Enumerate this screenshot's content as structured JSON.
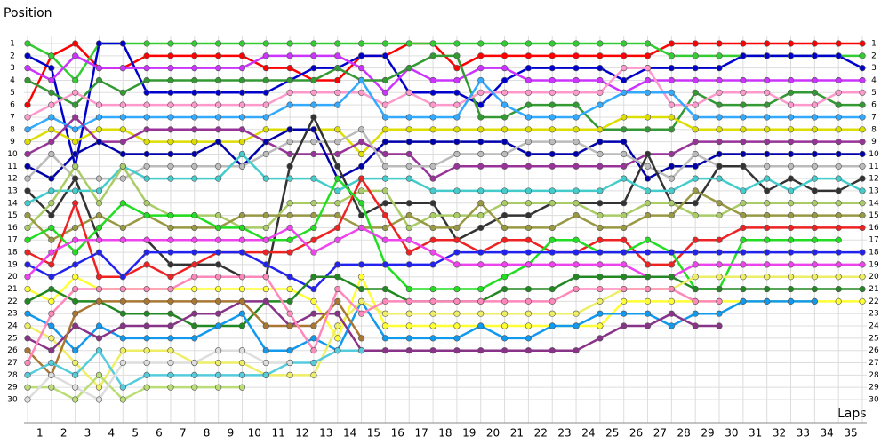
{
  "chart_data": {
    "type": "line",
    "y_label": "Position",
    "x_label": "Laps",
    "categories": [
      null,
      "1",
      "2",
      "3",
      "4",
      "5",
      "6",
      "7",
      "8",
      "9",
      "10",
      "11",
      "12",
      "13",
      "14",
      "15",
      "16",
      "17",
      "18",
      "19",
      "20",
      "21",
      "22",
      "23",
      "24",
      "25",
      "26",
      "27",
      "28",
      "29",
      "30",
      "31",
      "32",
      "33",
      "34",
      "35"
    ],
    "ylim": [
      1,
      30
    ],
    "y_inverted": true,
    "yticks": [
      1,
      2,
      3,
      4,
      5,
      6,
      7,
      8,
      9,
      10,
      11,
      12,
      13,
      14,
      15,
      16,
      17,
      18,
      19,
      20,
      21,
      22,
      23,
      24,
      25,
      26,
      27,
      28,
      29,
      30
    ],
    "grid": true,
    "series": [
      {
        "color": "#ff0000",
        "values": [
          6,
          2,
          1,
          3,
          3,
          2,
          2,
          2,
          2,
          2,
          3,
          3,
          4,
          4,
          2,
          2,
          1,
          1,
          3,
          2,
          2,
          2,
          2,
          2,
          2,
          2,
          2,
          1,
          1,
          1,
          1,
          1,
          1,
          1,
          1,
          1
        ]
      },
      {
        "color": "#33cc33",
        "values": [
          1,
          2,
          4,
          1,
          1,
          1,
          1,
          1,
          1,
          1,
          1,
          1,
          1,
          1,
          1,
          1,
          1,
          1,
          1,
          1,
          1,
          1,
          1,
          1,
          1,
          1,
          1,
          2,
          2,
          2,
          2,
          2,
          2,
          2,
          2,
          2
        ]
      },
      {
        "color": "#0000cc",
        "values": [
          2,
          3,
          11,
          1,
          1,
          5,
          5,
          5,
          5,
          5,
          5,
          4,
          3,
          3,
          2,
          2,
          5,
          5,
          5,
          6,
          4,
          3,
          3,
          3,
          3,
          4,
          3,
          3,
          3,
          3,
          2,
          2,
          2,
          2,
          2,
          3
        ]
      },
      {
        "color": "#cc33ff",
        "values": [
          3,
          4,
          2,
          3,
          3,
          3,
          3,
          3,
          3,
          3,
          2,
          2,
          2,
          2,
          3,
          5,
          3,
          4,
          4,
          3,
          3,
          4,
          4,
          4,
          4,
          5,
          4,
          4,
          4,
          4,
          4,
          4,
          4,
          4,
          4,
          4
        ]
      },
      {
        "color": "#339933",
        "values": [
          4,
          5,
          6,
          4,
          5,
          4,
          4,
          4,
          4,
          4,
          4,
          4,
          4,
          3,
          4,
          4,
          3,
          2,
          2,
          7,
          7,
          6,
          6,
          6,
          8,
          8,
          8,
          8,
          5,
          6,
          6,
          6,
          5,
          5,
          6,
          6
        ]
      },
      {
        "color": "#ff99cc",
        "values": [
          7,
          6,
          5,
          6,
          6,
          6,
          6,
          6,
          6,
          6,
          6,
          5,
          5,
          5,
          5,
          6,
          5,
          6,
          6,
          5,
          5,
          5,
          5,
          5,
          5,
          3,
          3,
          6,
          6,
          5,
          5,
          5,
          6,
          6,
          5,
          5
        ]
      },
      {
        "color": "#33aaff",
        "values": [
          8,
          7,
          8,
          7,
          7,
          7,
          7,
          7,
          7,
          7,
          7,
          6,
          6,
          6,
          4,
          7,
          7,
          7,
          7,
          4,
          6,
          7,
          7,
          7,
          6,
          5,
          5,
          5,
          7,
          7,
          7,
          7,
          7,
          7,
          7,
          7
        ]
      },
      {
        "color": "#dddd00",
        "values": [
          9,
          8,
          9,
          8,
          8,
          9,
          9,
          9,
          9,
          9,
          8,
          8,
          8,
          8,
          10,
          8,
          8,
          8,
          8,
          8,
          8,
          8,
          8,
          8,
          8,
          7,
          7,
          7,
          8,
          8,
          8,
          8,
          8,
          8,
          8,
          8
        ]
      },
      {
        "color": "#993399",
        "values": [
          10,
          9,
          7,
          9,
          9,
          8,
          8,
          8,
          8,
          8,
          9,
          10,
          10,
          10,
          9,
          10,
          10,
          12,
          11,
          11,
          11,
          11,
          11,
          11,
          11,
          11,
          10,
          10,
          9,
          9,
          9,
          9,
          9,
          9,
          9,
          9
        ]
      },
      {
        "color": "#0000aa",
        "values": [
          11,
          12,
          10,
          9,
          10,
          10,
          10,
          10,
          9,
          11,
          9,
          8,
          8,
          12,
          11,
          9,
          9,
          9,
          9,
          9,
          9,
          10,
          10,
          10,
          9,
          9,
          12,
          11,
          11,
          10,
          10,
          10,
          10,
          10,
          10,
          10
        ]
      },
      {
        "color": "#bbbbbb",
        "values": [
          12,
          10,
          12,
          12,
          12,
          11,
          11,
          11,
          11,
          11,
          10,
          9,
          9,
          9,
          8,
          11,
          11,
          11,
          10,
          10,
          10,
          9,
          9,
          9,
          10,
          10,
          11,
          12,
          10,
          11,
          11,
          11,
          11,
          11,
          11,
          11
        ]
      },
      {
        "color": "#333333",
        "values": [
          13,
          15,
          12,
          17,
          17,
          17,
          19,
          19,
          19,
          20,
          20,
          11,
          7,
          11,
          15,
          14,
          14,
          14,
          17,
          16,
          15,
          15,
          14,
          14,
          14,
          14,
          10,
          14,
          14,
          11,
          11,
          13,
          12,
          13,
          13,
          12
        ]
      },
      {
        "color": "#44cccc",
        "values": [
          14,
          13,
          13,
          13,
          11,
          12,
          12,
          12,
          12,
          10,
          12,
          12,
          12,
          13,
          12,
          12,
          12,
          13,
          13,
          13,
          13,
          13,
          13,
          13,
          13,
          12,
          13,
          13,
          12,
          12,
          13,
          12,
          13,
          12,
          12,
          13
        ]
      },
      {
        "color": "#aacc66",
        "values": [
          16,
          14,
          11,
          14,
          11,
          14,
          15,
          15,
          15,
          16,
          16,
          14,
          14,
          14,
          13,
          13,
          16,
          15,
          15,
          15,
          14,
          14,
          14,
          14,
          15,
          15,
          14,
          14,
          15,
          15,
          14,
          14,
          14,
          14,
          14,
          14
        ]
      },
      {
        "color": "#999944",
        "values": [
          15,
          17,
          16,
          15,
          16,
          15,
          16,
          16,
          16,
          15,
          15,
          15,
          15,
          15,
          16,
          16,
          15,
          16,
          16,
          14,
          16,
          16,
          16,
          15,
          16,
          16,
          15,
          15,
          13,
          14,
          15,
          15,
          15,
          15,
          15,
          15
        ]
      },
      {
        "color": "#ee2222",
        "values": [
          18,
          19,
          14,
          20,
          20,
          19,
          20,
          19,
          18,
          18,
          18,
          18,
          17,
          16,
          12,
          15,
          18,
          17,
          17,
          18,
          17,
          17,
          18,
          18,
          17,
          17,
          19,
          19,
          17,
          17,
          16,
          16,
          16,
          16,
          16,
          16
        ]
      },
      {
        "color": "#22dd22",
        "values": [
          17,
          16,
          18,
          16,
          14,
          15,
          15,
          15,
          16,
          16,
          17,
          17,
          16,
          12,
          14,
          19,
          21,
          21,
          21,
          21,
          20,
          19,
          17,
          17,
          18,
          18,
          17,
          18,
          21,
          21,
          17,
          17,
          17,
          17,
          17,
          null
        ]
      },
      {
        "color": "#2222ee",
        "values": [
          19,
          20,
          19,
          18,
          20,
          18,
          18,
          18,
          18,
          18,
          19,
          20,
          21,
          19,
          19,
          19,
          19,
          19,
          18,
          18,
          18,
          18,
          18,
          18,
          18,
          18,
          18,
          18,
          18,
          18,
          18,
          18,
          18,
          18,
          18,
          18
        ]
      },
      {
        "color": "#ee44ee",
        "values": [
          20,
          18,
          17,
          17,
          17,
          17,
          17,
          17,
          17,
          17,
          17,
          16,
          18,
          17,
          16,
          17,
          17,
          18,
          19,
          19,
          19,
          19,
          19,
          19,
          19,
          19,
          20,
          20,
          19,
          19,
          19,
          19,
          19,
          19,
          19,
          19
        ]
      },
      {
        "color": "#ffff33",
        "values": [
          21,
          22,
          20,
          21,
          21,
          21,
          21,
          21,
          21,
          21,
          21,
          21,
          22,
          25,
          20,
          24,
          24,
          24,
          24,
          24,
          24,
          24,
          24,
          24,
          24,
          22,
          22,
          22,
          22,
          22,
          22,
          22,
          22,
          22,
          22,
          22
        ]
      },
      {
        "color": "#228822",
        "values": [
          22,
          21,
          22,
          22,
          23,
          23,
          23,
          24,
          24,
          24,
          22,
          22,
          20,
          20,
          21,
          21,
          22,
          22,
          22,
          22,
          21,
          21,
          21,
          20,
          20,
          20,
          20,
          20,
          21,
          21,
          21,
          21,
          21,
          21,
          21,
          21
        ]
      },
      {
        "color": "#1199ee",
        "values": [
          23,
          24,
          26,
          24,
          25,
          25,
          25,
          25,
          24,
          23,
          26,
          26,
          25,
          26,
          22,
          25,
          25,
          25,
          25,
          24,
          25,
          25,
          24,
          24,
          23,
          23,
          23,
          24,
          23,
          23,
          22,
          22,
          22,
          22,
          null,
          null
        ]
      },
      {
        "color": "#eeee66",
        "values": [
          24,
          25,
          27,
          29,
          26,
          26,
          26,
          27,
          27,
          27,
          28,
          28,
          28,
          24,
          22,
          23,
          23,
          23,
          23,
          23,
          23,
          23,
          23,
          23,
          22,
          21,
          21,
          21,
          20,
          20,
          20,
          20,
          20,
          20,
          20,
          20
        ]
      },
      {
        "color": "#883388",
        "values": [
          25,
          26,
          24,
          25,
          24,
          24,
          24,
          23,
          23,
          22,
          22,
          24,
          23,
          23,
          26,
          26,
          26,
          26,
          26,
          26,
          26,
          26,
          26,
          26,
          25,
          24,
          24,
          23,
          24,
          24,
          null,
          null,
          null,
          null,
          null,
          null
        ]
      },
      {
        "color": "#aa7733",
        "values": [
          26,
          28,
          23,
          22,
          22,
          22,
          22,
          22,
          22,
          22,
          24,
          24,
          24,
          22,
          25,
          null,
          null,
          null,
          null,
          null,
          null,
          null,
          null,
          null,
          null,
          null,
          null,
          null,
          null,
          null,
          null,
          null,
          null,
          null,
          null,
          null
        ]
      },
      {
        "color": "#ff88bb",
        "values": [
          27,
          23,
          21,
          21,
          21,
          21,
          21,
          20,
          20,
          20,
          20,
          23,
          26,
          21,
          23,
          22,
          22,
          22,
          22,
          22,
          22,
          22,
          22,
          21,
          21,
          21,
          21,
          21,
          22,
          22,
          null,
          null,
          null,
          null,
          null,
          null
        ]
      },
      {
        "color": "#55ccdd",
        "values": [
          28,
          27,
          28,
          26,
          29,
          28,
          28,
          28,
          28,
          28,
          28,
          27,
          27,
          26,
          26,
          null,
          null,
          null,
          null,
          null,
          null,
          null,
          null,
          null,
          null,
          null,
          null,
          null,
          null,
          null,
          null,
          null,
          null,
          null,
          null,
          null
        ]
      },
      {
        "color": "#bbdd77",
        "values": [
          29,
          29,
          30,
          28,
          30,
          29,
          29,
          29,
          29,
          29,
          null,
          null,
          null,
          null,
          null,
          null,
          null,
          null,
          null,
          null,
          null,
          null,
          null,
          null,
          null,
          null,
          null,
          null,
          null,
          null,
          null,
          null,
          null,
          null,
          null,
          null
        ]
      },
      {
        "color": "#dddddd",
        "values": [
          30,
          28,
          29,
          30,
          27,
          27,
          27,
          27,
          26,
          26,
          27,
          27,
          null,
          null,
          null,
          null,
          null,
          null,
          null,
          null,
          null,
          null,
          null,
          null,
          null,
          null,
          null,
          null,
          null,
          null,
          null,
          null,
          null,
          null,
          null,
          null
        ]
      }
    ]
  }
}
